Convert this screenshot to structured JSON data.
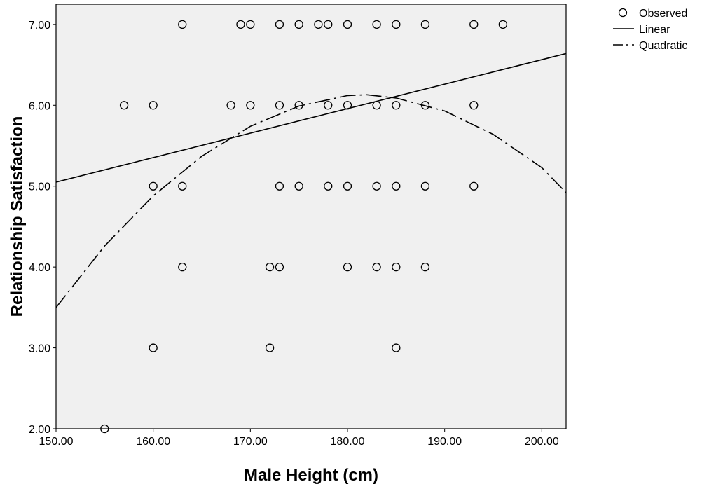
{
  "chart_data": {
    "type": "scatter",
    "title": "",
    "xlabel": "Male Height (cm)",
    "ylabel": "Relationship Satisfaction",
    "xlim": [
      150,
      202.5
    ],
    "ylim": [
      2,
      7.25
    ],
    "x_ticks": [
      150,
      160,
      170,
      180,
      190,
      200
    ],
    "x_tick_labels": [
      "150.00",
      "160.00",
      "170.00",
      "180.00",
      "190.00",
      "200.00"
    ],
    "y_ticks": [
      2,
      3,
      4,
      5,
      6,
      7
    ],
    "y_tick_labels": [
      "2.00",
      "3.00",
      "4.00",
      "5.00",
      "6.00",
      "7.00"
    ],
    "plot_background": "#f0f0f0",
    "grid": false,
    "legend_position": "top-right-outside",
    "legend": [
      {
        "label": "Observed",
        "symbol": "circle"
      },
      {
        "label": "Linear",
        "symbol": "solid-line"
      },
      {
        "label": "Quadratic",
        "symbol": "dash-dot-line"
      }
    ],
    "series": [
      {
        "name": "Observed",
        "kind": "points",
        "points": [
          [
            163,
            7
          ],
          [
            169,
            7
          ],
          [
            170,
            7
          ],
          [
            173,
            7
          ],
          [
            175,
            7
          ],
          [
            177,
            7
          ],
          [
            178,
            7
          ],
          [
            180,
            7
          ],
          [
            183,
            7
          ],
          [
            185,
            7
          ],
          [
            188,
            7
          ],
          [
            193,
            7
          ],
          [
            196,
            7
          ],
          [
            157,
            6
          ],
          [
            160,
            6
          ],
          [
            168,
            6
          ],
          [
            170,
            6
          ],
          [
            173,
            6
          ],
          [
            175,
            6
          ],
          [
            178,
            6
          ],
          [
            180,
            6
          ],
          [
            183,
            6
          ],
          [
            185,
            6
          ],
          [
            188,
            6
          ],
          [
            193,
            6
          ],
          [
            160,
            5
          ],
          [
            163,
            5
          ],
          [
            173,
            5
          ],
          [
            175,
            5
          ],
          [
            178,
            5
          ],
          [
            180,
            5
          ],
          [
            183,
            5
          ],
          [
            185,
            5
          ],
          [
            188,
            5
          ],
          [
            193,
            5
          ],
          [
            163,
            4
          ],
          [
            172,
            4
          ],
          [
            173,
            4
          ],
          [
            180,
            4
          ],
          [
            183,
            4
          ],
          [
            185,
            4
          ],
          [
            188,
            4
          ],
          [
            160,
            3
          ],
          [
            172,
            3
          ],
          [
            185,
            3
          ],
          [
            155,
            2
          ]
        ]
      },
      {
        "name": "Linear",
        "kind": "line",
        "style": "solid",
        "points": [
          [
            150,
            5.05
          ],
          [
            202.5,
            6.64
          ]
        ]
      },
      {
        "name": "Quadratic",
        "kind": "curve",
        "style": "dash-dot",
        "points": [
          [
            150,
            3.5
          ],
          [
            155,
            4.26
          ],
          [
            160,
            4.88
          ],
          [
            165,
            5.37
          ],
          [
            170,
            5.74
          ],
          [
            175,
            5.99
          ],
          [
            180,
            6.12
          ],
          [
            182,
            6.13
          ],
          [
            185,
            6.09
          ],
          [
            190,
            5.93
          ],
          [
            195,
            5.64
          ],
          [
            200,
            5.23
          ],
          [
            202.5,
            4.92
          ]
        ]
      }
    ]
  }
}
